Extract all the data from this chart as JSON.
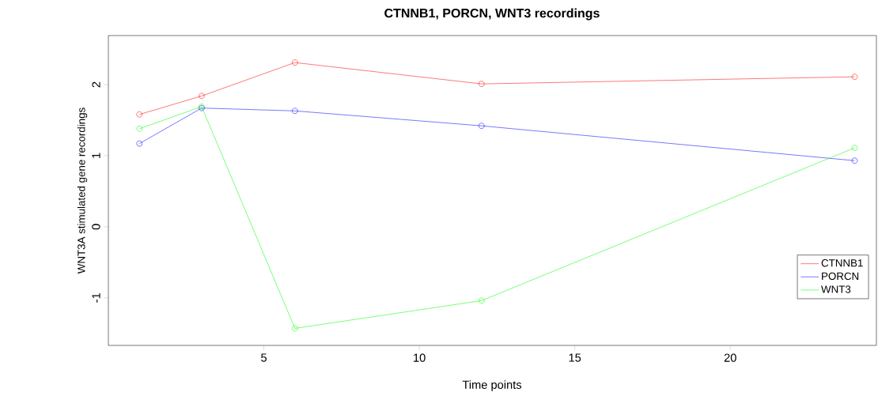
{
  "chart_data": {
    "type": "line",
    "title": "CTNNB1, PORCN, WNT3 recordings",
    "xlabel": "Time points",
    "ylabel": "WNT3A stimulated gene recordings",
    "x": [
      1,
      3,
      6,
      12,
      24
    ],
    "series": [
      {
        "name": "CTNNB1",
        "color": "#ff0000",
        "values": [
          1.58,
          1.84,
          2.31,
          2.01,
          2.11
        ]
      },
      {
        "name": "PORCN",
        "color": "#0000ff",
        "values": [
          1.17,
          1.67,
          1.63,
          1.42,
          0.93
        ]
      },
      {
        "name": "WNT3",
        "color": "#00ff00",
        "values": [
          1.38,
          1.69,
          -1.43,
          -1.04,
          1.11
        ]
      }
    ],
    "xlim": [
      0,
      24.7
    ],
    "ylim": [
      -1.67,
      2.69
    ],
    "xticks": [
      5,
      10,
      15,
      20
    ],
    "yticks": [
      -1,
      0,
      1,
      2
    ],
    "marker": "circle",
    "line_style": "solid",
    "legend": "bottom right",
    "grid": false
  }
}
